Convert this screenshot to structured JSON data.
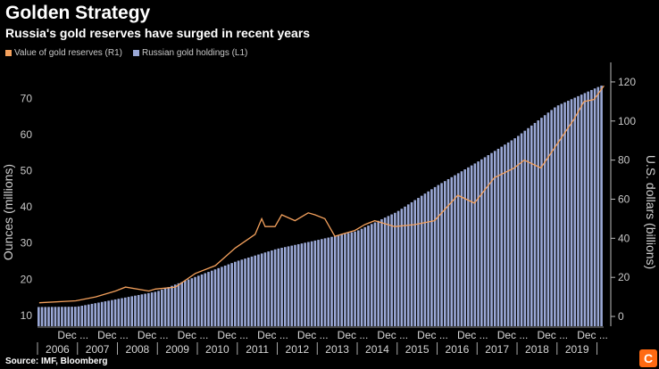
{
  "title": "Golden Strategy",
  "subtitle": "Russia's gold reserves have surged in recent years",
  "source": "Source: IMF, Bloomberg",
  "logo_letter": "C",
  "legend": [
    {
      "label": "Value of gold reserves (R1)",
      "color": "#f4a15d"
    },
    {
      "label": "Russian gold holdings (L1)",
      "color": "#9aa8d6"
    }
  ],
  "chart_data": {
    "type": "bar+line",
    "grid": false,
    "y_left": {
      "label": "Ounces (millions)",
      "ticks": [
        10,
        20,
        30,
        40,
        50,
        60,
        70
      ],
      "range": [
        7,
        80
      ]
    },
    "y_right": {
      "label": "U.S. dollars (billions)",
      "ticks": [
        0,
        20,
        40,
        60,
        80,
        100,
        120
      ],
      "range": [
        -5,
        130
      ]
    },
    "x_upper_labels": [
      "Dec ...",
      "Dec ...",
      "Dec ...",
      "Dec ...",
      "Dec ...",
      "Dec ...",
      "Dec ...",
      "Dec ...",
      "Dec ...",
      "Dec ...",
      "Dec ...",
      "Dec ...",
      "Dec ...",
      "Dec ..."
    ],
    "x_year_labels": [
      "2006",
      "2007",
      "2008",
      "2009",
      "2010",
      "2011",
      "2012",
      "2013",
      "2014",
      "2015",
      "2016",
      "2017",
      "2018",
      "2019"
    ],
    "series": [
      {
        "name": "Russian gold holdings (L1)",
        "axis": "left",
        "type": "bar",
        "year_end_values": {
          "2006": 12.4,
          "2007": 14.5,
          "2008": 16.6,
          "2009": 20.8,
          "2010": 25.0,
          "2011": 28.4,
          "2012": 30.8,
          "2013": 33.3,
          "2014": 38.6,
          "2015": 45.8,
          "2016": 52.3,
          "2017": 59.3,
          "2018": 67.9,
          "2019": 73.0
        }
      },
      {
        "name": "Value of gold reserves (R1)",
        "axis": "right",
        "type": "line",
        "points": [
          [
            "Jan 2006",
            7
          ],
          [
            "Dec 2006",
            8
          ],
          [
            "Jun 2007",
            10
          ],
          [
            "Dec 2007",
            13
          ],
          [
            "Mar 2008",
            15
          ],
          [
            "Oct 2008",
            13
          ],
          [
            "Dec 2008",
            14
          ],
          [
            "Jun 2009",
            15
          ],
          [
            "Dec 2009",
            22
          ],
          [
            "Jun 2010",
            26
          ],
          [
            "Dec 2010",
            35
          ],
          [
            "Jun 2011",
            42
          ],
          [
            "Aug 2011",
            50
          ],
          [
            "Sep 2011",
            46
          ],
          [
            "Dec 2011",
            46
          ],
          [
            "Feb 2012",
            52
          ],
          [
            "Jun 2012",
            49
          ],
          [
            "Oct 2012",
            53
          ],
          [
            "Dec 2012",
            52
          ],
          [
            "Mar 2013",
            50
          ],
          [
            "Jun 2013",
            41
          ],
          [
            "Dec 2013",
            44
          ],
          [
            "Mar 2014",
            47
          ],
          [
            "Jun 2014",
            49
          ],
          [
            "Dec 2014",
            46
          ],
          [
            "Jun 2015",
            47
          ],
          [
            "Dec 2015",
            49
          ],
          [
            "Jul 2016",
            62
          ],
          [
            "Dec 2016",
            58
          ],
          [
            "Jun 2017",
            71
          ],
          [
            "Dec 2017",
            76
          ],
          [
            "Mar 2018",
            80
          ],
          [
            "Aug 2018",
            76
          ],
          [
            "Dec 2018",
            86
          ],
          [
            "Jun 2019",
            101
          ],
          [
            "Sep 2019",
            110
          ],
          [
            "Dec 2019",
            111
          ],
          [
            "Mar 2020",
            118
          ]
        ]
      }
    ]
  }
}
